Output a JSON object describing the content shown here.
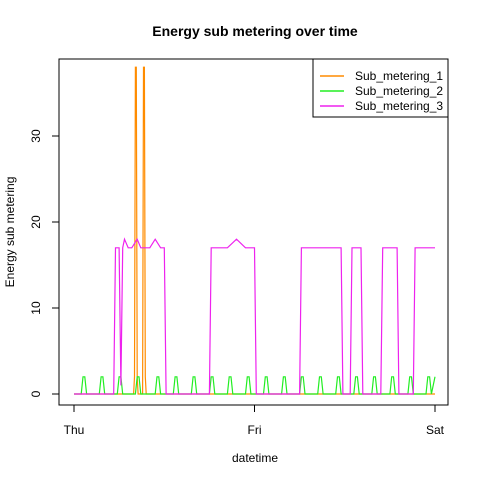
{
  "chart_data": {
    "type": "line",
    "title": "Energy sub metering over time",
    "xlabel": "datetime",
    "ylabel": "Energy sub metering",
    "xlim_days": [
      0,
      2
    ],
    "ylim": [
      0,
      38
    ],
    "x_ticks": [
      {
        "value": 0,
        "label": "Thu"
      },
      {
        "value": 1,
        "label": "Fri"
      },
      {
        "value": 2,
        "label": "Sat"
      }
    ],
    "y_ticks": [
      {
        "value": 0,
        "label": "0"
      },
      {
        "value": 10,
        "label": "10"
      },
      {
        "value": 20,
        "label": "20"
      },
      {
        "value": 30,
        "label": "30"
      }
    ],
    "legend_position": "top-right",
    "grid": false,
    "series": [
      {
        "name": "Sub_metering_1",
        "color": "#FF8C00",
        "x": [
          0.0,
          0.33,
          0.335,
          0.34,
          0.345,
          0.35,
          0.355,
          0.36,
          0.38,
          0.385,
          0.39,
          0.395,
          0.4,
          0.405,
          0.41,
          0.45,
          0.5,
          1.0,
          1.5,
          2.0
        ],
        "y": [
          0,
          0,
          2,
          38,
          38,
          2,
          0,
          0,
          0,
          38,
          38,
          2,
          0,
          0,
          0,
          0,
          0,
          0,
          0,
          0
        ]
      },
      {
        "name": "Sub_metering_2",
        "color": "#22EE22",
        "x": [
          0.0,
          0.04,
          0.05,
          0.06,
          0.07,
          0.14,
          0.15,
          0.16,
          0.17,
          0.24,
          0.25,
          0.26,
          0.27,
          0.34,
          0.35,
          0.36,
          0.37,
          0.45,
          0.46,
          0.47,
          0.48,
          0.55,
          0.56,
          0.57,
          0.58,
          0.65,
          0.66,
          0.67,
          0.68,
          0.75,
          0.76,
          0.77,
          0.78,
          0.85,
          0.86,
          0.87,
          0.88,
          0.95,
          0.96,
          0.97,
          0.98,
          1.05,
          1.06,
          1.07,
          1.08,
          1.15,
          1.16,
          1.17,
          1.18,
          1.25,
          1.26,
          1.27,
          1.28,
          1.35,
          1.36,
          1.37,
          1.38,
          1.45,
          1.46,
          1.47,
          1.48,
          1.55,
          1.56,
          1.57,
          1.58,
          1.65,
          1.66,
          1.67,
          1.68,
          1.75,
          1.76,
          1.77,
          1.78,
          1.85,
          1.86,
          1.87,
          1.88,
          1.95,
          1.96,
          1.97,
          1.98,
          2.0
        ],
        "y": [
          0,
          0,
          2,
          2,
          0,
          0,
          2,
          2,
          0,
          0,
          2,
          2,
          0,
          0,
          2,
          2,
          0,
          0,
          2,
          2,
          0,
          0,
          2,
          2,
          0,
          0,
          2,
          2,
          0,
          0,
          2,
          2,
          0,
          0,
          2,
          2,
          0,
          0,
          2,
          2,
          0,
          0,
          2,
          2,
          0,
          0,
          2,
          2,
          0,
          0,
          2,
          2,
          0,
          0,
          2,
          2,
          0,
          0,
          2,
          2,
          0,
          0,
          2,
          2,
          0,
          0,
          2,
          2,
          0,
          0,
          2,
          2,
          0,
          0,
          2,
          2,
          0,
          0,
          2,
          2,
          0,
          2
        ]
      },
      {
        "name": "Sub_metering_3",
        "color": "#EE22EE",
        "x": [
          0.0,
          0.22,
          0.23,
          0.25,
          0.26,
          0.27,
          0.28,
          0.3,
          0.32,
          0.35,
          0.37,
          0.4,
          0.42,
          0.45,
          0.48,
          0.5,
          0.51,
          0.75,
          0.76,
          0.8,
          0.85,
          0.9,
          0.95,
          1.0,
          1.01,
          1.25,
          1.26,
          1.3,
          1.35,
          1.4,
          1.45,
          1.48,
          1.49,
          1.53,
          1.54,
          1.59,
          1.6,
          1.7,
          1.71,
          1.75,
          1.79,
          1.8,
          1.88,
          1.89,
          1.91,
          1.95,
          1.98,
          2.0
        ],
        "y": [
          0,
          0,
          17,
          17,
          1,
          17,
          18,
          17,
          17,
          18,
          17,
          17,
          17,
          18,
          17,
          17,
          0,
          0,
          17,
          17,
          17,
          18,
          17,
          17,
          0,
          0,
          17,
          17,
          17,
          17,
          17,
          17,
          0,
          0,
          17,
          17,
          0,
          0,
          17,
          17,
          17,
          0,
          0,
          17,
          17,
          17,
          17,
          17
        ]
      }
    ]
  }
}
